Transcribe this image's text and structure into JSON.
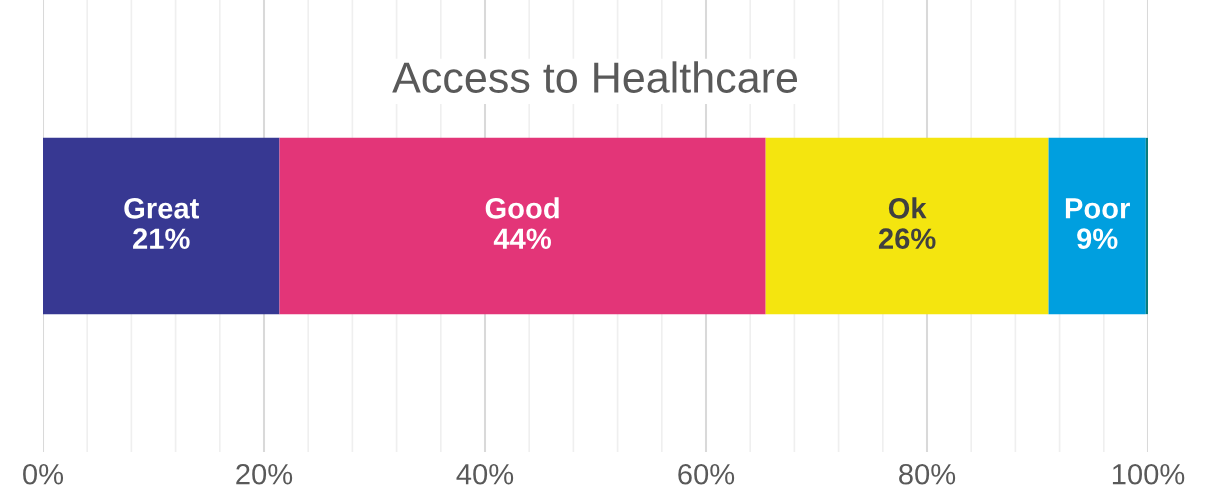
{
  "chart_data": {
    "type": "bar",
    "orientation": "horizontal",
    "stacked": true,
    "title": "Access to Healthcare",
    "categories": [
      null
    ],
    "series": [
      {
        "name": "Great",
        "color": "#373892",
        "values": [
          21.4
        ],
        "value_labels": [
          "21%"
        ]
      },
      {
        "name": "Good",
        "color": "#e33578",
        "values": [
          44.0
        ],
        "value_labels": [
          "44%"
        ]
      },
      {
        "name": "Ok",
        "color": "#f4e50f",
        "values": [
          25.6
        ],
        "value_labels": [
          "26%"
        ]
      },
      {
        "name": "Poor",
        "color": "#009fdf",
        "values": [
          8.8
        ],
        "value_labels": [
          "9%"
        ]
      },
      {
        "color": "#0a7c7c",
        "values": [
          0.2
        ]
      }
    ],
    "xlim": [
      0,
      100
    ],
    "xticks": [
      {
        "value": 0,
        "label": "0%"
      },
      {
        "value": 4,
        "label": null
      },
      {
        "value": 8,
        "label": null
      },
      {
        "value": 12,
        "label": null
      },
      {
        "value": 16,
        "label": null
      },
      {
        "value": 20,
        "label": "20%"
      },
      {
        "value": 24,
        "label": null
      },
      {
        "value": 28,
        "label": null
      },
      {
        "value": 32,
        "label": null
      },
      {
        "value": 36,
        "label": null
      },
      {
        "value": 40,
        "label": "40%"
      },
      {
        "value": 44,
        "label": null
      },
      {
        "value": 48,
        "label": null
      },
      {
        "value": 52,
        "label": null
      },
      {
        "value": 56,
        "label": null
      },
      {
        "value": 60,
        "label": "60%"
      },
      {
        "value": 64,
        "label": null
      },
      {
        "value": 68,
        "label": null
      },
      {
        "value": 72,
        "label": null
      },
      {
        "value": 76,
        "label": null
      },
      {
        "value": 80,
        "label": "80%"
      },
      {
        "value": 84,
        "label": null
      },
      {
        "value": 88,
        "label": null
      },
      {
        "value": 92,
        "label": null
      },
      {
        "value": 96,
        "label": null
      },
      {
        "value": 100,
        "label": "100%"
      }
    ],
    "grid": "x",
    "tick_labels": "x",
    "legend": false
  }
}
